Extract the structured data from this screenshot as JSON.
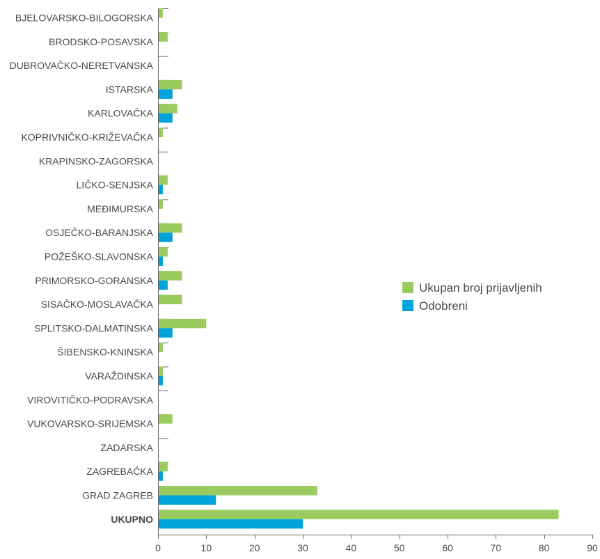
{
  "chart_data": {
    "type": "bar",
    "orientation": "horizontal",
    "categories": [
      "BJELOVARSKO-BILOGORSKA",
      "BRODSKO-POSAVSKA",
      "DUBROVAČKO-NERETVANSKA",
      "ISTARSKA",
      "KARLOVAČKA",
      "KOPRIVNIČKO-KRIŽEVAČKA",
      "KRAPINSKO-ZAGORSKA",
      "LIČKO-SENJSKA",
      "MEĐIMURSKA",
      "OSJEČKO-BARANJSKA",
      "POŽEŠKO-SLAVONSKA",
      "PRIMORSKO-GORANSKA",
      "SISAČKO-MOSLAVAČKA",
      "SPLITSKO-DALMATINSKA",
      "ŠIBENSKO-KNINSKA",
      "VARAŽDINSKA",
      "VIROVITIČKO-PODRAVSKA",
      "VUKOVARSKO-SRIJEMSKA",
      "ZADARSKA",
      "ZAGREBAČKA",
      "GRAD ZAGREB",
      "UKUPNO"
    ],
    "bold_categories": [
      "UKUPNO"
    ],
    "series": [
      {
        "name": "Ukupan broj prijavljenih",
        "color": "#9bcb5f",
        "values": [
          1,
          2,
          0,
          5,
          4,
          1,
          0,
          2,
          1,
          5,
          2,
          5,
          5,
          10,
          1,
          1,
          0,
          3,
          0,
          2,
          33,
          83
        ]
      },
      {
        "name": "Odobreni",
        "color": "#00a3dc",
        "values": [
          0,
          0,
          0,
          3,
          3,
          0,
          0,
          1,
          0,
          3,
          1,
          2,
          0,
          3,
          0,
          1,
          0,
          0,
          0,
          1,
          12,
          30
        ]
      }
    ],
    "xlim": [
      0,
      90
    ],
    "xticks": [
      "0",
      "10",
      "20",
      "30",
      "40",
      "50",
      "60",
      "70",
      "80",
      "90"
    ],
    "legend_position": "right",
    "grid": false
  }
}
